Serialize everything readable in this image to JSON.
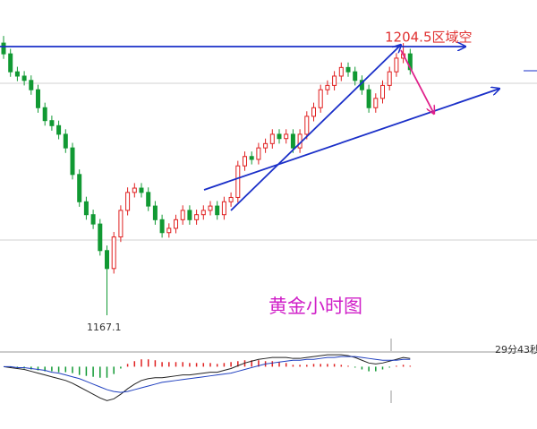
{
  "chart_data": [
    {
      "type": "candlestick",
      "title": "黄金小时图",
      "annotations": [
        "1204.5区域空",
        "1167.1",
        "29分43秒"
      ],
      "ylim": [
        1163.6,
        1211
      ],
      "colors": {
        "up": "#e02020",
        "down": "#119933"
      },
      "candles": [
        [
          1205.0,
          1206.0,
          1202.8,
          1203.5
        ],
        [
          1203.5,
          1204.2,
          1200.3,
          1201.0
        ],
        [
          1201.0,
          1201.7,
          1199.7,
          1200.4
        ],
        [
          1200.4,
          1201.1,
          1199.1,
          1199.8
        ],
        [
          1199.8,
          1200.5,
          1197.8,
          1198.5
        ],
        [
          1198.5,
          1199.2,
          1195.3,
          1196.0
        ],
        [
          1196.0,
          1196.7,
          1193.5,
          1194.2
        ],
        [
          1194.2,
          1194.9,
          1192.8,
          1193.5
        ],
        [
          1193.5,
          1194.2,
          1191.6,
          1192.3
        ],
        [
          1192.3,
          1193.0,
          1189.7,
          1190.4
        ],
        [
          1190.4,
          1191.1,
          1186.0,
          1186.7
        ],
        [
          1186.7,
          1187.4,
          1182.2,
          1182.9
        ],
        [
          1182.9,
          1183.6,
          1180.4,
          1181.1
        ],
        [
          1181.1,
          1181.8,
          1179.1,
          1179.8
        ],
        [
          1179.8,
          1180.5,
          1175.4,
          1176.1
        ],
        [
          1176.1,
          1176.8,
          1167.1,
          1173.6
        ],
        [
          1173.6,
          1178.7,
          1172.9,
          1178.0
        ],
        [
          1178.0,
          1182.4,
          1177.3,
          1181.7
        ],
        [
          1181.7,
          1184.9,
          1181.0,
          1184.2
        ],
        [
          1184.2,
          1185.5,
          1183.5,
          1184.8
        ],
        [
          1184.8,
          1185.5,
          1183.5,
          1184.2
        ],
        [
          1184.2,
          1184.9,
          1181.6,
          1182.3
        ],
        [
          1182.3,
          1183.0,
          1179.7,
          1180.4
        ],
        [
          1180.4,
          1181.1,
          1177.9,
          1178.6
        ],
        [
          1178.6,
          1179.9,
          1177.9,
          1179.2
        ],
        [
          1179.2,
          1181.1,
          1178.5,
          1180.4
        ],
        [
          1180.4,
          1182.4,
          1179.7,
          1181.7
        ],
        [
          1181.7,
          1182.4,
          1179.7,
          1180.4
        ],
        [
          1180.4,
          1181.8,
          1179.7,
          1181.1
        ],
        [
          1181.1,
          1182.4,
          1180.4,
          1181.7
        ],
        [
          1181.7,
          1183.0,
          1181.0,
          1182.3
        ],
        [
          1182.3,
          1183.0,
          1180.4,
          1181.1
        ],
        [
          1181.1,
          1183.6,
          1180.4,
          1182.9
        ],
        [
          1182.9,
          1184.2,
          1182.2,
          1183.5
        ],
        [
          1183.5,
          1188.6,
          1182.8,
          1187.9
        ],
        [
          1187.9,
          1189.9,
          1187.2,
          1189.2
        ],
        [
          1189.2,
          1189.9,
          1188.1,
          1188.8
        ],
        [
          1188.8,
          1191.1,
          1188.1,
          1190.4
        ],
        [
          1190.4,
          1191.7,
          1189.7,
          1191.0
        ],
        [
          1191.0,
          1193.0,
          1190.3,
          1192.3
        ],
        [
          1192.3,
          1193.0,
          1191.0,
          1191.7
        ],
        [
          1191.7,
          1193.0,
          1191.0,
          1192.3
        ],
        [
          1192.3,
          1193.0,
          1189.7,
          1190.4
        ],
        [
          1190.4,
          1193.0,
          1189.7,
          1192.3
        ],
        [
          1192.3,
          1195.5,
          1191.6,
          1194.8
        ],
        [
          1194.8,
          1196.7,
          1194.1,
          1196.0
        ],
        [
          1196.0,
          1199.2,
          1195.3,
          1198.5
        ],
        [
          1198.5,
          1199.8,
          1197.8,
          1199.1
        ],
        [
          1199.1,
          1201.1,
          1198.4,
          1200.4
        ],
        [
          1200.4,
          1202.3,
          1199.7,
          1201.6
        ],
        [
          1201.6,
          1202.3,
          1200.3,
          1201.0
        ],
        [
          1201.0,
          1201.7,
          1199.1,
          1199.8
        ],
        [
          1199.8,
          1200.5,
          1197.8,
          1198.5
        ],
        [
          1198.5,
          1199.2,
          1195.3,
          1196.0
        ],
        [
          1196.0,
          1198.0,
          1195.3,
          1197.3
        ],
        [
          1197.3,
          1199.8,
          1196.6,
          1199.1
        ],
        [
          1199.1,
          1201.7,
          1198.4,
          1201.0
        ],
        [
          1201.0,
          1203.6,
          1200.3,
          1202.9
        ],
        [
          1202.9,
          1205.0,
          1202.2,
          1203.5
        ],
        [
          1203.5,
          1204.2,
          1200.6,
          1201.3
        ]
      ]
    },
    {
      "type": "macd",
      "ylim": [
        -6,
        1.6
      ],
      "histogram_colors": {
        "up": "#e02020",
        "down": "#119933"
      },
      "histogram": [
        0,
        -0.1,
        -0.1,
        -0.2,
        -0.3,
        -0.4,
        -0.5,
        -0.5,
        -0.6,
        -0.6,
        -0.7,
        -0.9,
        -1.0,
        -1.1,
        -1.2,
        -1.2,
        -0.8,
        -0.2,
        0.3,
        0.6,
        0.8,
        0.8,
        0.7,
        0.5,
        0.5,
        0.5,
        0.5,
        0.4,
        0.4,
        0.4,
        0.4,
        0.3,
        0.4,
        0.5,
        0.6,
        0.7,
        0.7,
        0.7,
        0.6,
        0.6,
        0.5,
        0.4,
        0.2,
        0.2,
        0.2,
        0.3,
        0.3,
        0.3,
        0.3,
        0.2,
        0.1,
        -0.1,
        -0.3,
        -0.5,
        -0.5,
        -0.3,
        -0.1,
        0.1,
        0.2,
        0.1
      ],
      "lines": [
        {
          "color": "#222222",
          "values": [
            0,
            -0.1,
            -0.2,
            -0.3,
            -0.5,
            -0.7,
            -0.9,
            -1.1,
            -1.3,
            -1.5,
            -1.8,
            -2.2,
            -2.6,
            -3.0,
            -3.4,
            -3.7,
            -3.5,
            -3.0,
            -2.4,
            -1.9,
            -1.5,
            -1.3,
            -1.2,
            -1.2,
            -1.1,
            -1.0,
            -0.9,
            -0.9,
            -0.8,
            -0.7,
            -0.6,
            -0.6,
            -0.4,
            -0.2,
            0.1,
            0.4,
            0.6,
            0.8,
            0.9,
            1.0,
            1.0,
            1.0,
            0.9,
            0.9,
            1.0,
            1.1,
            1.2,
            1.3,
            1.3,
            1.3,
            1.2,
            1.0,
            0.7,
            0.4,
            0.3,
            0.4,
            0.6,
            0.8,
            1.0,
            0.9
          ]
        },
        {
          "color": "#1f3fbf",
          "values": [
            0,
            0,
            -0.1,
            -0.1,
            -0.2,
            -0.3,
            -0.4,
            -0.6,
            -0.7,
            -0.9,
            -1.1,
            -1.3,
            -1.6,
            -1.9,
            -2.2,
            -2.5,
            -2.7,
            -2.8,
            -2.7,
            -2.5,
            -2.3,
            -2.1,
            -1.9,
            -1.7,
            -1.6,
            -1.5,
            -1.4,
            -1.3,
            -1.2,
            -1.1,
            -1.0,
            -0.9,
            -0.8,
            -0.7,
            -0.5,
            -0.3,
            -0.1,
            0.1,
            0.3,
            0.4,
            0.5,
            0.6,
            0.7,
            0.7,
            0.8,
            0.8,
            0.9,
            1.0,
            1.0,
            1.1,
            1.1,
            1.1,
            1.0,
            0.9,
            0.8,
            0.7,
            0.7,
            0.7,
            0.8,
            0.8
          ]
        }
      ]
    }
  ]
}
